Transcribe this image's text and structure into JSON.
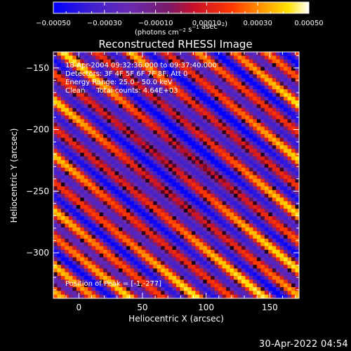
{
  "chart_data": {
    "type": "heatmap",
    "title": "Reconstructed RHESSI Image",
    "xlabel": "Heliocentric X (arcsec)",
    "ylabel": "Heliocentric Y (arcsec)",
    "xlim": [
      -20,
      173
    ],
    "ylim": [
      -337,
      -137
    ],
    "x_ticks": [
      0,
      50,
      100,
      150
    ],
    "y_ticks": [
      -150,
      -200,
      -250,
      -300
    ],
    "x_tick_labels": [
      "0",
      "50",
      "100",
      "150"
    ],
    "y_tick_labels": [
      "-150",
      "-200",
      "-250",
      "-300"
    ],
    "colorbar": {
      "range": [
        -0.0005,
        0.0005
      ],
      "ticks": [
        -0.0005,
        -0.0003,
        -0.0001,
        0.0001,
        0.0003,
        0.0005
      ],
      "tick_labels": [
        "-0.00050",
        "-0.00030",
        "-0.00010",
        "0.00010",
        "0.00030",
        "0.00050"
      ],
      "units_label": "(photons cm^-2 s^-1 asec^-2)",
      "colormap": "blue-purple-red-orange-yellow-white"
    },
    "annotations": [
      "18-Apr-2004 09:32:36.000 to 09:37:40.000",
      "Detectors: 3F 4F 5F 6F 7F 8F, Att 0",
      "Energy Range: 25.0 - 50.0 keV",
      "Clean     Total counts: 4.64E+03"
    ],
    "peak_label": "Position of Peak = [-1,-277]",
    "peak_position": [
      -1,
      -277
    ],
    "pattern": {
      "description": "diagonal fringe stripes",
      "grid_cols": 64,
      "grid_rows": 66
    }
  },
  "footer": {
    "timestamp": "30-Apr-2022 04:54"
  }
}
